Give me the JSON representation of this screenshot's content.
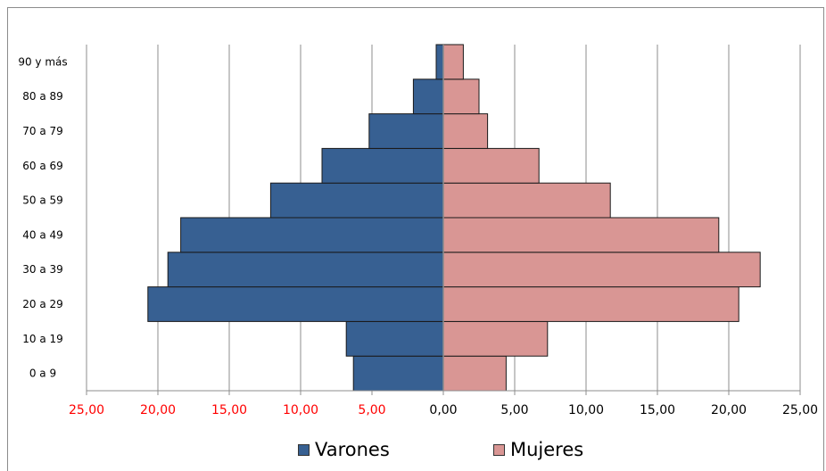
{
  "chart_data": {
    "type": "bar",
    "orientation": "horizontal",
    "stacked_diverging": true,
    "categories": [
      "0 a 9",
      "10 a 19",
      "20 a 29",
      "30 a 39",
      "40 a 49",
      "50 a 59",
      "60 a 69",
      "70 a 79",
      "80 a 89",
      "90 y más"
    ],
    "series": [
      {
        "name": "Varones",
        "values": [
          6.3,
          6.8,
          20.7,
          19.3,
          18.4,
          12.1,
          8.5,
          5.2,
          2.1,
          0.5
        ],
        "color": "#376092",
        "direction": "left"
      },
      {
        "name": "Mujeres",
        "values": [
          4.4,
          7.3,
          20.7,
          22.2,
          19.3,
          11.7,
          6.7,
          3.1,
          2.5,
          1.4
        ],
        "color": "#d99694",
        "direction": "right"
      }
    ],
    "xlim": [
      -25,
      25
    ],
    "x_ticks": [
      "25,00",
      "20,00",
      "15,00",
      "10,00",
      "5,00",
      "0,00",
      "5,00",
      "10,00",
      "15,00",
      "20,00",
      "25,00"
    ],
    "tick_colors": {
      "negative": "#ff0000",
      "positive": "#000000"
    },
    "grid": "vertical",
    "legend_position": "bottom"
  }
}
